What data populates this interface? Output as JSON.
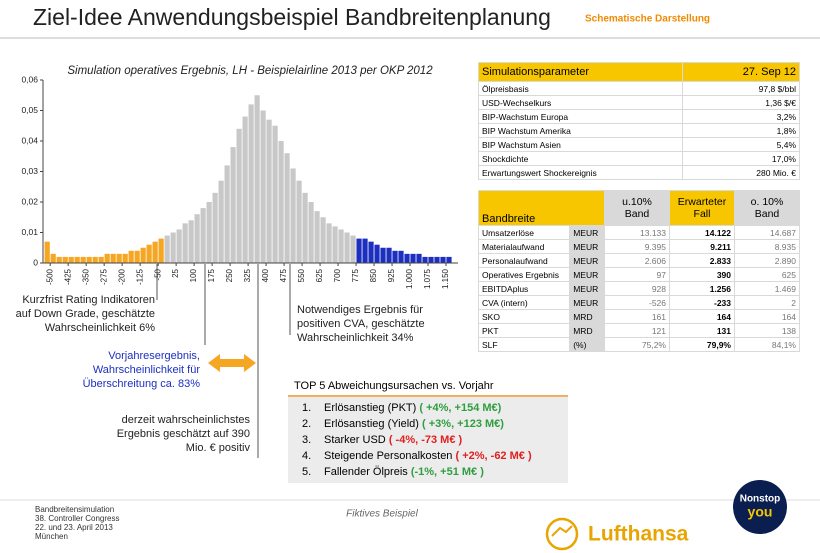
{
  "header": {
    "title": "Ziel-Idee Anwendungsbeispiel Bandbreitenplanung",
    "subtitle": "Schematische Darstellung"
  },
  "chart_data": {
    "type": "histogram",
    "title": "Simulation operatives Ergebnis, LH - Beispielairline  2013 per OKP 2012",
    "xlim": [
      -530,
      1200
    ],
    "ylim": [
      0,
      0.06
    ],
    "yticks": [
      0,
      {
        "value": 0.01,
        "label": "0,01"
      },
      {
        "value": 0.02,
        "label": "0,02"
      },
      {
        "value": 0.03,
        "label": "0,03"
      },
      {
        "value": 0.04,
        "label": "0,04"
      },
      {
        "value": 0.05,
        "label": "0,05"
      },
      {
        "value": 0.06,
        "label": "0,06"
      }
    ],
    "xticks": [
      -500,
      -425,
      -350,
      -275,
      -200,
      -125,
      -50,
      25,
      100,
      175,
      250,
      325,
      400,
      475,
      550,
      625,
      700,
      775,
      850,
      925,
      {
        "value": 1000,
        "label": "1.000"
      },
      {
        "value": 1075,
        "label": "1.075"
      },
      {
        "value": 1150,
        "label": "1.150"
      }
    ],
    "series": [
      {
        "color": "#f5a623",
        "bins": [
          -525,
          -500,
          -475,
          -450,
          -425,
          -400,
          -375,
          -350,
          -325,
          -300,
          -275,
          -250,
          -225,
          -200,
          -175,
          -150,
          -125,
          -100,
          -75,
          -50,
          -25
        ],
        "values": [
          0.007,
          0.003,
          0.002,
          0.002,
          0.002,
          0.002,
          0.002,
          0.002,
          0.002,
          0.002,
          0.003,
          0.003,
          0.003,
          0.003,
          0.004,
          0.004,
          0.005,
          0.006,
          0.007,
          0.008
        ]
      },
      {
        "color": "#c8c8c8",
        "bins": [
          -25,
          0,
          25,
          50,
          75,
          100,
          125,
          150,
          175,
          200,
          225,
          250,
          275,
          300,
          325,
          350,
          375,
          400,
          425,
          450,
          475,
          500,
          525,
          550,
          575,
          600,
          625,
          650,
          675,
          700,
          725,
          750,
          775
        ],
        "values": [
          0.009,
          0.01,
          0.011,
          0.013,
          0.014,
          0.016,
          0.018,
          0.02,
          0.023,
          0.027,
          0.032,
          0.038,
          0.044,
          0.048,
          0.052,
          0.055,
          0.05,
          0.047,
          0.045,
          0.04,
          0.036,
          0.031,
          0.027,
          0.023,
          0.02,
          0.017,
          0.015,
          0.013,
          0.012,
          0.011,
          0.01,
          0.009
        ]
      },
      {
        "color": "#1c2fbf",
        "bins": [
          775,
          800,
          825,
          850,
          875,
          900,
          925,
          950,
          975,
          1000,
          1025,
          1050,
          1075,
          1100,
          1125,
          1150,
          1175
        ],
        "values": [
          0.008,
          0.008,
          0.007,
          0.006,
          0.005,
          0.005,
          0.004,
          0.004,
          0.003,
          0.003,
          0.003,
          0.002,
          0.002,
          0.002,
          0.002,
          0.002
        ]
      }
    ]
  },
  "annotations": [
    {
      "lines": [
        "Kurzfrist Rating Indikatoren",
        "auf Down Grade, geschätzte",
        "Wahrscheinlichkeit 6%"
      ]
    },
    {
      "lines": [
        "Notwendiges Ergebnis für",
        "positiven CVA, geschätzte",
        "Wahrscheinlichkeit 34%"
      ]
    },
    {
      "lines": [
        "Vorjahresergebnis,",
        "Wahrscheinlichkeit für",
        "Überschreitung ca. 83%"
      ]
    },
    {
      "lines": [
        "derzeit wahrscheinlichstes",
        "Ergebnis geschätzt auf 390",
        "Mio. € positiv"
      ]
    }
  ],
  "parameters": {
    "header": [
      "Simulationsparameter",
      "27. Sep 12"
    ],
    "rows": [
      [
        "Ölpreisbasis",
        "97,8 $/bbl"
      ],
      [
        "USD-Wechselkurs",
        "1,36 $/€"
      ],
      [
        "BIP-Wachstum Europa",
        "3,2%"
      ],
      [
        "BIP Wachstum Amerika",
        "1,8%"
      ],
      [
        "BIP Wachstum Asien",
        "5,4%"
      ],
      [
        "Shockdichte",
        "17,0%"
      ],
      [
        "Erwartungswert Shockereignis",
        "280 Mio. €"
      ]
    ]
  },
  "bandbreite": {
    "label": "Bandbreite",
    "columns": [
      [
        "u.10%",
        "Band"
      ],
      [
        "Erwarteter",
        "Fall"
      ],
      [
        "o. 10%",
        "Band"
      ]
    ],
    "rows": [
      [
        "Umsatzerlöse",
        "MEUR",
        "13.133",
        "14.122",
        "14.687"
      ],
      [
        "Materialaufwand",
        "MEUR",
        "9.395",
        "9.211",
        "8.935"
      ],
      [
        "Personalaufwand",
        "MEUR",
        "2.606",
        "2.833",
        "2.890"
      ],
      [
        "Operatives Ergebnis",
        "MEUR",
        "97",
        "390",
        "625"
      ],
      [
        "EBITDAplus",
        "MEUR",
        "928",
        "1.256",
        "1.469"
      ],
      [
        "CVA (intern)",
        "MEUR",
        "-526",
        "-233",
        "2"
      ],
      [
        "SKO",
        "MRD",
        "161",
        "164",
        "164"
      ],
      [
        "PKT",
        "MRD",
        "121",
        "131",
        "138"
      ],
      [
        "SLF",
        "(%)",
        "75,2%",
        "79,9%",
        "84,1%"
      ]
    ]
  },
  "top5": {
    "title": "TOP 5 Abweichungsursachen vs. Vorjahr",
    "items": [
      {
        "number": "1.",
        "text": "Erlösanstieg (PKT)",
        "delta": "( +4%, +154 M€)",
        "color": "#2e9e3e"
      },
      {
        "number": "2.",
        "text": "Erlösanstieg (Yield)",
        "delta": "( +3%, +123 M€)",
        "color": "#2e9e3e"
      },
      {
        "number": "3.",
        "text": "Starker USD",
        "delta": "( -4%, -73 M€ )",
        "color": "#e02020"
      },
      {
        "number": "4.",
        "text": "Steigende Personalkosten",
        "delta": "( +2%, -62 M€ )",
        "color": "#e02020"
      },
      {
        "number": "5.",
        "text": "Fallender Ölpreis",
        "delta": "(-1%, +51 M€ )",
        "color": "#2e9e3e"
      }
    ]
  },
  "footer": {
    "lines": [
      "Bandbreitensimulation",
      "38. Controller Congress",
      "22. und 23. April 2013",
      "München"
    ],
    "note": "Fiktives Beispiel",
    "brand": "Lufthansa",
    "logo": [
      "Nonstop",
      "you"
    ]
  }
}
